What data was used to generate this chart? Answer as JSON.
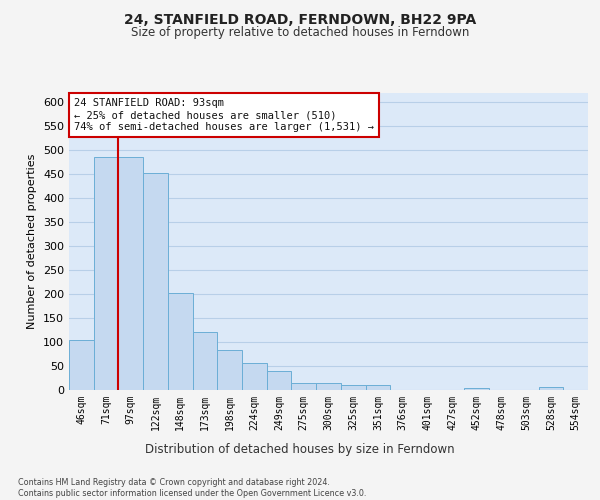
{
  "title": "24, STANFIELD ROAD, FERNDOWN, BH22 9PA",
  "subtitle": "Size of property relative to detached houses in Ferndown",
  "xlabel": "Distribution of detached houses by size in Ferndown",
  "ylabel": "Number of detached properties",
  "categories": [
    "46sqm",
    "71sqm",
    "97sqm",
    "122sqm",
    "148sqm",
    "173sqm",
    "198sqm",
    "224sqm",
    "249sqm",
    "275sqm",
    "300sqm",
    "325sqm",
    "351sqm",
    "376sqm",
    "401sqm",
    "427sqm",
    "452sqm",
    "478sqm",
    "503sqm",
    "528sqm",
    "554sqm"
  ],
  "values": [
    105,
    485,
    485,
    453,
    202,
    120,
    83,
    56,
    40,
    15,
    15,
    10,
    10,
    0,
    0,
    0,
    5,
    0,
    0,
    7,
    0
  ],
  "bar_color": "#c5d9f0",
  "bar_edge_color": "#6baed6",
  "vline_color": "#cc0000",
  "vline_x": 1.5,
  "annotation_text": "24 STANFIELD ROAD: 93sqm\n← 25% of detached houses are smaller (510)\n74% of semi-detached houses are larger (1,531) →",
  "annotation_box_facecolor": "#ffffff",
  "annotation_box_edge_color": "#cc0000",
  "bg_color": "#dce9f8",
  "grid_color": "#b8cfe8",
  "footer_text": "Contains HM Land Registry data © Crown copyright and database right 2024.\nContains public sector information licensed under the Open Government Licence v3.0.",
  "fig_facecolor": "#f4f4f4",
  "ylim_max": 620,
  "yticks": [
    0,
    50,
    100,
    150,
    200,
    250,
    300,
    350,
    400,
    450,
    500,
    550,
    600
  ]
}
